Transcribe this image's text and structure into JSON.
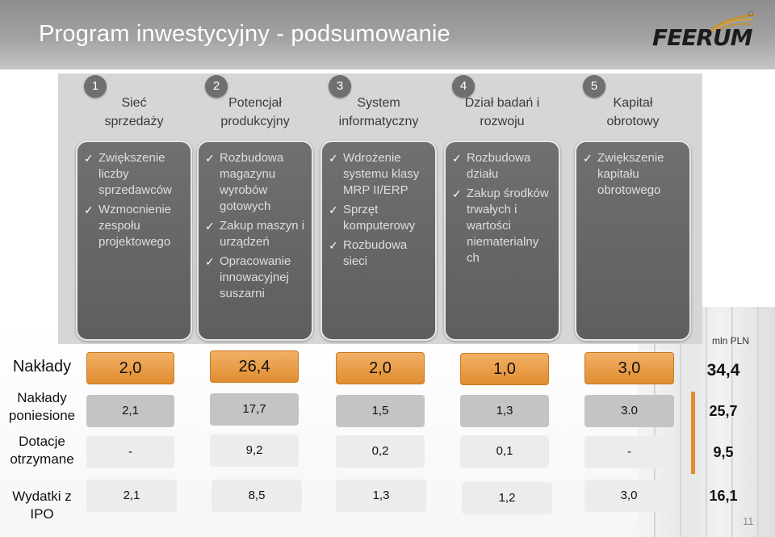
{
  "slide": {
    "title": "Program inwestycyjny - podsumowanie",
    "logo_text": "FEERUM",
    "unit": "mln PLN",
    "page_number": "11"
  },
  "columns": [
    {
      "number": "1",
      "heading_line1": "Sieć",
      "heading_line2": "sprzedaży",
      "bullets": [
        "Zwiększenie liczby sprzedawców",
        "Wzmocnienie zespołu projektowego"
      ]
    },
    {
      "number": "2",
      "heading_line1": "Potencjał",
      "heading_line2": "produkcyjny",
      "bullets": [
        "Rozbudowa magazynu wyrobów gotowych",
        "Zakup maszyn i urządzeń",
        "Opracowanie innowacyjnej suszarni"
      ]
    },
    {
      "number": "3",
      "heading_line1": "System",
      "heading_line2": "informatyczny",
      "bullets": [
        "Wdrożenie systemu klasy MRP II/ERP",
        "Sprzęt komputerowy",
        "Rozbudowa sieci"
      ]
    },
    {
      "number": "4",
      "heading_line1": "Dział badań i",
      "heading_line2": "rozwoju",
      "bullets": [
        "Rozbudowa działu",
        "Zakup środków trwałych i wartości niematerialny ch"
      ]
    },
    {
      "number": "5",
      "heading_line1": "Kapitał",
      "heading_line2": "obrotowy",
      "bullets": [
        "Zwiększenie kapitału obrotowego"
      ]
    }
  ],
  "rows": {
    "naklady": {
      "label": "Nakłady",
      "values": [
        "2,0",
        "26,4",
        "2,0",
        "1,0",
        "3,0"
      ],
      "total": "34,4"
    },
    "poniesione": {
      "label_line1": "Nakłady",
      "label_line2": "poniesione",
      "values": [
        "2,1",
        "17,7",
        "1,5",
        "1,3",
        "3.0"
      ],
      "total": "25,7"
    },
    "dotacje": {
      "label_line1": "Dotacje",
      "label_line2": "otrzymane",
      "values": [
        "-",
        "9,2",
        "0,2",
        "0,1",
        "-"
      ],
      "total": "9,5"
    },
    "ipo": {
      "label_line1": "Wydatki z",
      "label_line2": "IPO",
      "values": [
        "2,1",
        "8,5",
        "1,3",
        "1,2",
        "3,0"
      ],
      "total": "16,1"
    }
  },
  "colors": {
    "title_bar": "#9a9a9a",
    "column_box": "#666666",
    "accent_orange": "#e08d30",
    "cell_gray": "#c4c4c4",
    "cell_light": "#ececec"
  }
}
